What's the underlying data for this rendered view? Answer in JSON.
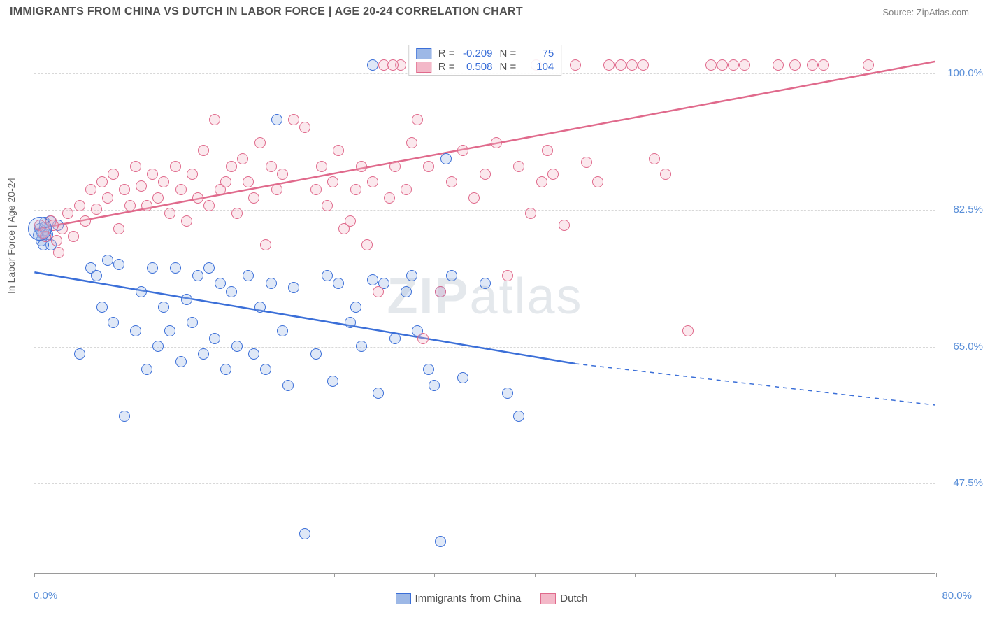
{
  "title": "IMMIGRANTS FROM CHINA VS DUTCH IN LABOR FORCE | AGE 20-24 CORRELATION CHART",
  "source": "Source: ZipAtlas.com",
  "ylabel": "In Labor Force | Age 20-24",
  "watermark_bold": "ZIP",
  "watermark_light": "atlas",
  "chart": {
    "type": "scatter-with-trend",
    "background_color": "#ffffff",
    "grid_color": "#d8d8d8",
    "axis_color": "#9a9a9a",
    "tick_label_color": "#5a8fd8",
    "tick_fontsize": 15,
    "title_fontsize": 16,
    "xlim": [
      0,
      80
    ],
    "ylim": [
      36,
      104
    ],
    "ytick_values": [
      47.5,
      65.0,
      82.5,
      100.0
    ],
    "ytick_labels": [
      "47.5%",
      "65.0%",
      "82.5%",
      "100.0%"
    ],
    "xtick_values": [
      0,
      8.8,
      17.7,
      26.6,
      35.5,
      44.4,
      53.3,
      62.2,
      71.1,
      80
    ],
    "x_min_label": "0.0%",
    "x_max_label": "80.0%",
    "point_radius": 8,
    "point_fill_opacity": 0.32,
    "trend_line_width": 2.5
  },
  "legend_top": [
    {
      "r": "-0.209",
      "n": "75",
      "fill": "#9db8e6",
      "stroke": "#3b6fd8"
    },
    {
      "r": "0.508",
      "n": "104",
      "fill": "#f3b8c8",
      "stroke": "#e06a8c"
    }
  ],
  "legend_top_labels": {
    "r": "R =",
    "n": "N ="
  },
  "legend_bottom": [
    {
      "label": "Immigrants from China",
      "fill": "#9db8e6",
      "stroke": "#3b6fd8"
    },
    {
      "label": "Dutch",
      "fill": "#f3b8c8",
      "stroke": "#e06a8c"
    }
  ],
  "series": [
    {
      "name": "china",
      "color_fill": "#9db8e6",
      "color_stroke": "#3b6fd8",
      "trend": {
        "x1": 0,
        "y1": 74.5,
        "x2_solid": 48,
        "y2_solid": 62.8,
        "x2_dash": 80,
        "y2_dash": 57.5
      },
      "points": [
        [
          0.5,
          80
        ],
        [
          0.7,
          79.5
        ],
        [
          0.9,
          80.2
        ],
        [
          1.1,
          79
        ],
        [
          1.4,
          81
        ],
        [
          2.1,
          80.5
        ],
        [
          1.5,
          78
        ],
        [
          0.6,
          78.5
        ],
        [
          0.8,
          78
        ],
        [
          0.4,
          79.2
        ],
        [
          1.0,
          79.8
        ],
        [
          0.9,
          80.8
        ],
        [
          1.2,
          79.3
        ],
        [
          4,
          64
        ],
        [
          5,
          75
        ],
        [
          5.5,
          74
        ],
        [
          6,
          70
        ],
        [
          6.5,
          76
        ],
        [
          7,
          68
        ],
        [
          7.5,
          75.5
        ],
        [
          8,
          56
        ],
        [
          9,
          67
        ],
        [
          9.5,
          72
        ],
        [
          10,
          62
        ],
        [
          10.5,
          75
        ],
        [
          11,
          65
        ],
        [
          11.5,
          70
        ],
        [
          12,
          67
        ],
        [
          12.5,
          75
        ],
        [
          13,
          63
        ],
        [
          13.5,
          71
        ],
        [
          14,
          68
        ],
        [
          14.5,
          74
        ],
        [
          15,
          64
        ],
        [
          15.5,
          75
        ],
        [
          16,
          66
        ],
        [
          16.5,
          73
        ],
        [
          17,
          62
        ],
        [
          17.5,
          72
        ],
        [
          18,
          65
        ],
        [
          19,
          74
        ],
        [
          19.5,
          64
        ],
        [
          20,
          70
        ],
        [
          20.5,
          62
        ],
        [
          21,
          73
        ],
        [
          21.5,
          94
        ],
        [
          22,
          67
        ],
        [
          22.5,
          60
        ],
        [
          23,
          72.5
        ],
        [
          25,
          64
        ],
        [
          26,
          74
        ],
        [
          26.5,
          60.5
        ],
        [
          27,
          73
        ],
        [
          28,
          68
        ],
        [
          28.5,
          70
        ],
        [
          29,
          65
        ],
        [
          30,
          73.5
        ],
        [
          30.5,
          59
        ],
        [
          31,
          73
        ],
        [
          32,
          66
        ],
        [
          33,
          72
        ],
        [
          33.5,
          74
        ],
        [
          34,
          67
        ],
        [
          35,
          62
        ],
        [
          35.5,
          60
        ],
        [
          36,
          72
        ],
        [
          36.5,
          89
        ],
        [
          37,
          74
        ],
        [
          38,
          61
        ],
        [
          40,
          73
        ],
        [
          42,
          59
        ],
        [
          43,
          56
        ],
        [
          30,
          101
        ],
        [
          24,
          41
        ],
        [
          36,
          40
        ]
      ]
    },
    {
      "name": "dutch",
      "color_fill": "#f3b8c8",
      "color_stroke": "#e06a8c",
      "trend": {
        "x1": 0,
        "y1": 80,
        "x2_solid": 80,
        "y2_solid": 101.5,
        "x2_dash": 80,
        "y2_dash": 101.5
      },
      "points": [
        [
          0.5,
          80.5
        ],
        [
          1,
          79
        ],
        [
          1.5,
          81
        ],
        [
          2,
          78.5
        ],
        [
          2.5,
          80
        ],
        [
          3,
          82
        ],
        [
          3.5,
          79
        ],
        [
          2.2,
          77
        ],
        [
          1.7,
          80.5
        ],
        [
          0.8,
          79.5
        ],
        [
          4,
          83
        ],
        [
          4.5,
          81
        ],
        [
          5,
          85
        ],
        [
          5.5,
          82.5
        ],
        [
          6,
          86
        ],
        [
          6.5,
          84
        ],
        [
          7,
          87
        ],
        [
          7.5,
          80
        ],
        [
          8,
          85
        ],
        [
          8.5,
          83
        ],
        [
          9,
          88
        ],
        [
          9.5,
          85.5
        ],
        [
          10,
          83
        ],
        [
          10.5,
          87
        ],
        [
          11,
          84
        ],
        [
          11.5,
          86
        ],
        [
          12,
          82
        ],
        [
          12.5,
          88
        ],
        [
          13,
          85
        ],
        [
          13.5,
          81
        ],
        [
          14,
          87
        ],
        [
          14.5,
          84
        ],
        [
          15,
          90
        ],
        [
          15.5,
          83
        ],
        [
          16,
          94
        ],
        [
          16.5,
          85
        ],
        [
          17,
          86
        ],
        [
          17.5,
          88
        ],
        [
          18,
          82
        ],
        [
          18.5,
          89
        ],
        [
          19,
          86
        ],
        [
          19.5,
          84
        ],
        [
          20,
          91
        ],
        [
          20.5,
          78
        ],
        [
          21,
          88
        ],
        [
          21.5,
          85
        ],
        [
          22,
          87
        ],
        [
          23,
          94
        ],
        [
          24,
          93
        ],
        [
          25,
          85
        ],
        [
          25.5,
          88
        ],
        [
          26,
          83
        ],
        [
          26.5,
          86
        ],
        [
          27,
          90
        ],
        [
          27.5,
          80
        ],
        [
          28,
          81
        ],
        [
          28.5,
          85
        ],
        [
          29,
          88
        ],
        [
          29.5,
          78
        ],
        [
          30,
          86
        ],
        [
          30.5,
          72
        ],
        [
          31,
          101
        ],
        [
          31.5,
          84
        ],
        [
          32,
          88
        ],
        [
          32.5,
          101
        ],
        [
          33,
          85
        ],
        [
          33.5,
          91
        ],
        [
          34,
          94
        ],
        [
          34.5,
          66
        ],
        [
          35,
          88
        ],
        [
          36,
          72
        ],
        [
          37,
          86
        ],
        [
          38,
          90
        ],
        [
          39,
          84
        ],
        [
          40,
          87
        ],
        [
          41,
          91
        ],
        [
          42,
          74
        ],
        [
          43,
          88
        ],
        [
          44,
          82
        ],
        [
          44.5,
          101
        ],
        [
          45,
          86
        ],
        [
          45.5,
          90
        ],
        [
          46,
          87
        ],
        [
          47,
          80.5
        ],
        [
          48,
          101
        ],
        [
          49,
          88.5
        ],
        [
          50,
          86
        ],
        [
          51,
          101
        ],
        [
          52,
          101
        ],
        [
          53,
          101
        ],
        [
          54,
          101
        ],
        [
          55,
          89
        ],
        [
          56,
          87
        ],
        [
          58,
          67
        ],
        [
          60,
          101
        ],
        [
          61,
          101
        ],
        [
          62,
          101
        ],
        [
          63,
          101
        ],
        [
          66,
          101
        ],
        [
          67.5,
          101
        ],
        [
          69,
          101
        ],
        [
          70,
          101
        ],
        [
          74,
          101
        ],
        [
          31.8,
          101
        ]
      ]
    }
  ]
}
